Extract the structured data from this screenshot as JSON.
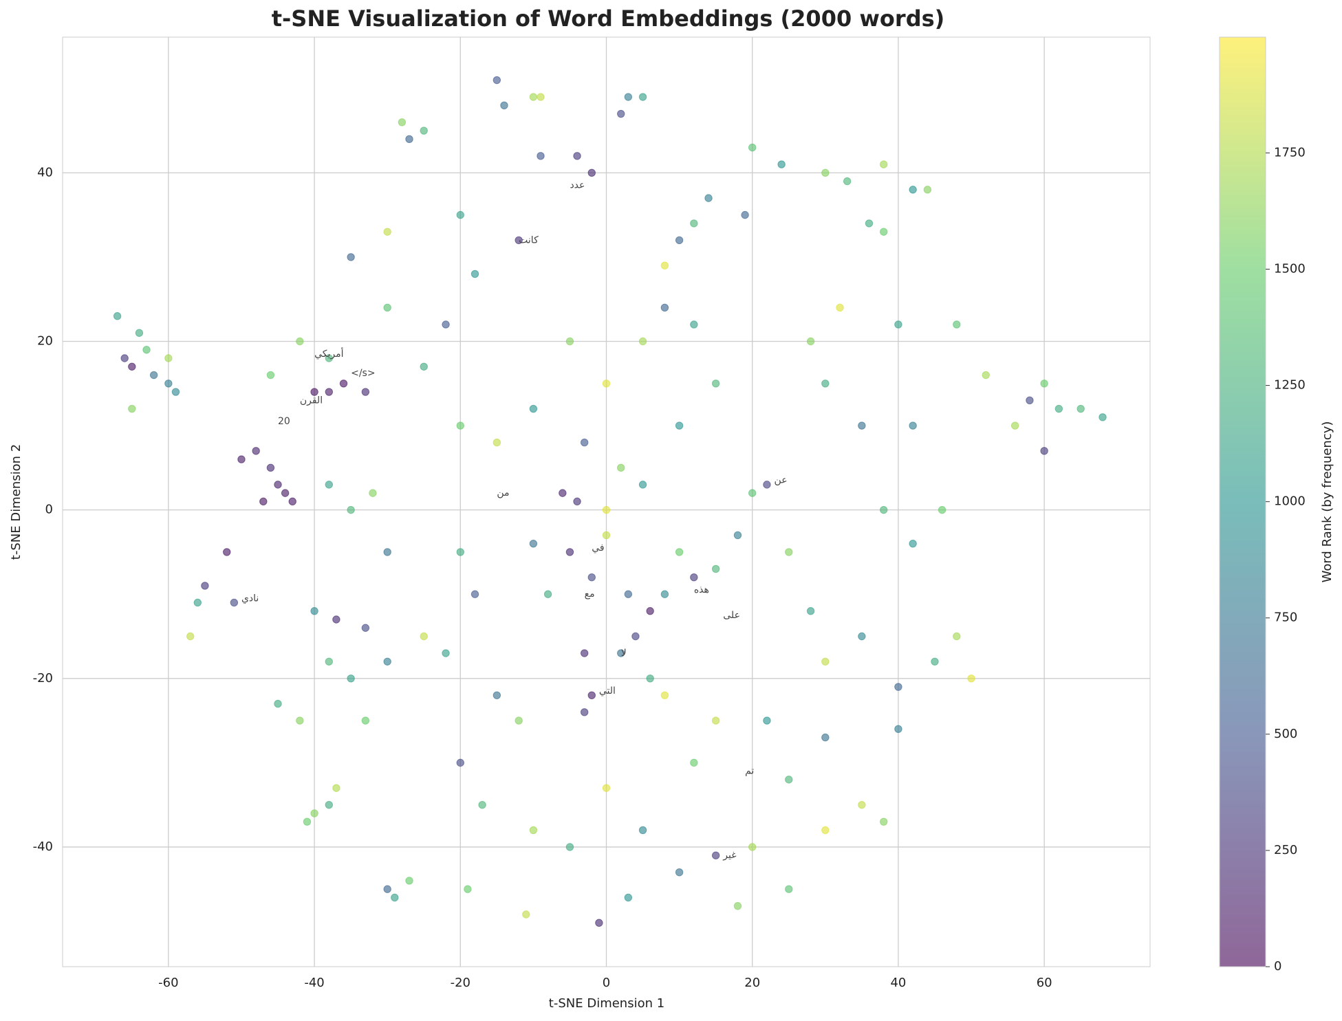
{
  "chart_data": {
    "type": "scatter",
    "title": "t-SNE Visualization of Word Embeddings (2000 words)",
    "x_label": "t-SNE Dimension 1",
    "y_label": "t-SNE Dimension 2",
    "colorbar_label": "Word Rank (by frequency)",
    "colormap": "viridis",
    "alpha": 0.6,
    "grid": true,
    "xlim": [
      -74.5,
      74.5
    ],
    "ylim": [
      -54.2,
      56.1
    ],
    "clim": [
      0,
      1999
    ],
    "xticks": [
      -60,
      -40,
      -20,
      0,
      20,
      40,
      60
    ],
    "yticks": [
      -40,
      -20,
      0,
      20,
      40
    ],
    "cticks": [
      0,
      250,
      500,
      750,
      1000,
      1250,
      1500,
      1750
    ],
    "x": [
      -66,
      -65,
      -63,
      -62,
      -60,
      -64,
      -67,
      -60,
      -65,
      -59,
      -44,
      -45,
      -46,
      -48,
      -50,
      -47,
      -43,
      -36,
      -38,
      -40,
      -33,
      -52,
      -55,
      -57,
      -56,
      -51,
      -40,
      -38,
      -41,
      -37,
      -29,
      -27,
      -30,
      -14,
      -15,
      -10,
      -9,
      3,
      5,
      2,
      -28,
      -27,
      -25,
      -9,
      -4,
      -2,
      -12,
      10,
      12,
      8,
      14,
      20,
      24,
      19,
      30,
      33,
      38,
      42,
      44,
      36,
      38,
      58,
      60,
      62,
      56,
      60,
      65,
      68,
      52,
      -5,
      -2,
      0,
      3,
      6,
      8,
      10,
      12,
      -8,
      -10,
      2,
      5,
      -3,
      -6,
      -4,
      0,
      15,
      18,
      20,
      22,
      25,
      28,
      30,
      35,
      40,
      45,
      48,
      50,
      42,
      38,
      46,
      35,
      30,
      28,
      40,
      42,
      48,
      32,
      -20,
      -18,
      -25,
      -22,
      -15,
      -12,
      -20,
      -17,
      -10,
      -5,
      0,
      5,
      10,
      15,
      20,
      25,
      18,
      -1,
      -19,
      -11,
      3,
      -35,
      -30,
      -33,
      -38,
      -42,
      -45,
      -40,
      -37,
      -33,
      -35,
      -38,
      -32,
      -30,
      -20,
      -15,
      -10,
      -25,
      -22,
      -18,
      -30,
      -20,
      -30,
      -35,
      -38,
      -42,
      -46,
      5,
      8,
      12,
      15,
      10,
      0,
      -5,
      15,
      12,
      8,
      -3,
      2,
      6,
      22,
      25,
      30,
      35,
      38,
      30,
      40,
      -3,
      -2,
      4
    ],
    "y": [
      18,
      17,
      19,
      16,
      18,
      21,
      23,
      15,
      12,
      14,
      2,
      3,
      5,
      7,
      6,
      1,
      1,
      15,
      14,
      14,
      14,
      -5,
      -9,
      -15,
      -11,
      -11,
      -36,
      -35,
      -37,
      -33,
      -46,
      -44,
      -45,
      48,
      51,
      49,
      49,
      49,
      49,
      47,
      46,
      44,
      45,
      42,
      42,
      40,
      32,
      32,
      34,
      29,
      37,
      43,
      41,
      35,
      40,
      39,
      41,
      38,
      38,
      34,
      33,
      13,
      15,
      12,
      10,
      7,
      12,
      11,
      16,
      -5,
      -8,
      -3,
      -10,
      -12,
      -10,
      -5,
      -8,
      -10,
      -4,
      5,
      3,
      8,
      2,
      1,
      0,
      -7,
      -3,
      2,
      3,
      -5,
      -12,
      -18,
      -15,
      -21,
      -18,
      -15,
      -20,
      -4,
      0,
      0,
      10,
      15,
      20,
      22,
      10,
      22,
      24,
      -5,
      -10,
      -15,
      -17,
      -22,
      -25,
      -30,
      -35,
      -38,
      -40,
      -33,
      -38,
      -43,
      -41,
      -40,
      -45,
      -47,
      -49,
      -45,
      -48,
      -46,
      -20,
      -18,
      -25,
      -18,
      -25,
      -23,
      -12,
      -13,
      -14,
      0,
      3,
      2,
      -5,
      10,
      8,
      12,
      17,
      22,
      28,
      24,
      35,
      33,
      30,
      18,
      20,
      16,
      20,
      24,
      22,
      15,
      10,
      15,
      20,
      -25,
      -30,
      -22,
      -24,
      -17,
      -20,
      -25,
      -32,
      -27,
      -35,
      -37,
      -38,
      -26,
      -17,
      -22,
      -15
    ],
    "ranks": [
      300,
      100,
      1400,
      700,
      1700,
      1200,
      1100,
      800,
      1600,
      900,
      100,
      150,
      200,
      180,
      120,
      90,
      110,
      80,
      130,
      60,
      200,
      90,
      300,
      1800,
      1100,
      400,
      1600,
      1200,
      1500,
      1750,
      1100,
      1500,
      600,
      700,
      500,
      1700,
      1800,
      800,
      1100,
      400,
      1600,
      600,
      1300,
      500,
      300,
      200,
      250,
      600,
      1300,
      1900,
      800,
      1400,
      1000,
      600,
      1600,
      1300,
      1700,
      1000,
      1600,
      1200,
      1500,
      400,
      1500,
      1200,
      1700,
      300,
      1300,
      1100,
      1700,
      200,
      400,
      1800,
      600,
      100,
      900,
      1500,
      300,
      1200,
      700,
      1600,
      1000,
      500,
      150,
      250,
      1900,
      1300,
      800,
      1400,
      350,
      1600,
      1100,
      1800,
      900,
      600,
      1200,
      1700,
      1900,
      1000,
      1300,
      1500,
      700,
      1200,
      1600,
      1100,
      800,
      1400,
      1900,
      1200,
      500,
      1800,
      1100,
      700,
      1600,
      400,
      1300,
      1700,
      1200,
      1900,
      900,
      700,
      300,
      1700,
      1400,
      1600,
      200,
      1500,
      1800,
      1000,
      1100,
      800,
      1500,
      1300,
      1600,
      1200,
      900,
      200,
      400,
      1300,
      1100,
      1600,
      700,
      1500,
      1800,
      1000,
      1200,
      500,
      1000,
      1400,
      1100,
      1800,
      600,
      1300,
      1600,
      1500,
      1700,
      600,
      1100,
      1300,
      1000,
      1900,
      1600,
      1800,
      1500,
      1900,
      300,
      700,
      1200,
      1000,
      1300,
      700,
      1800,
      1600,
      1900,
      800,
      200,
      150,
      350
    ],
    "annotations": [
      {
        "text": "20",
        "x": -45,
        "y": 10.5
      },
      {
        "text": "</s>",
        "x": -35,
        "y": 16.2
      },
      {
        "text": "القرن",
        "x": -42,
        "y": 13
      },
      {
        "text": "أمريكي",
        "x": -40,
        "y": 18.5
      },
      {
        "text": "كانت",
        "x": -12,
        "y": 32
      },
      {
        "text": "عدد",
        "x": -5,
        "y": 38.5
      },
      {
        "text": "عن",
        "x": 23,
        "y": 3.5
      },
      {
        "text": "غير",
        "x": 16,
        "y": -41
      },
      {
        "text": "تم",
        "x": 19,
        "y": -31
      },
      {
        "text": "نادي",
        "x": -50,
        "y": -10.5
      },
      {
        "text": "التي",
        "x": -1,
        "y": -21.5
      },
      {
        "text": "هذه",
        "x": 12,
        "y": -9.5
      },
      {
        "text": "على",
        "x": 16,
        "y": -12.5
      },
      {
        "text": "من",
        "x": -15,
        "y": 2
      },
      {
        "text": "في",
        "x": -2,
        "y": -4.5
      },
      {
        "text": "لا",
        "x": 2,
        "y": -17
      },
      {
        "text": "مع",
        "x": -3,
        "y": -10
      }
    ]
  }
}
